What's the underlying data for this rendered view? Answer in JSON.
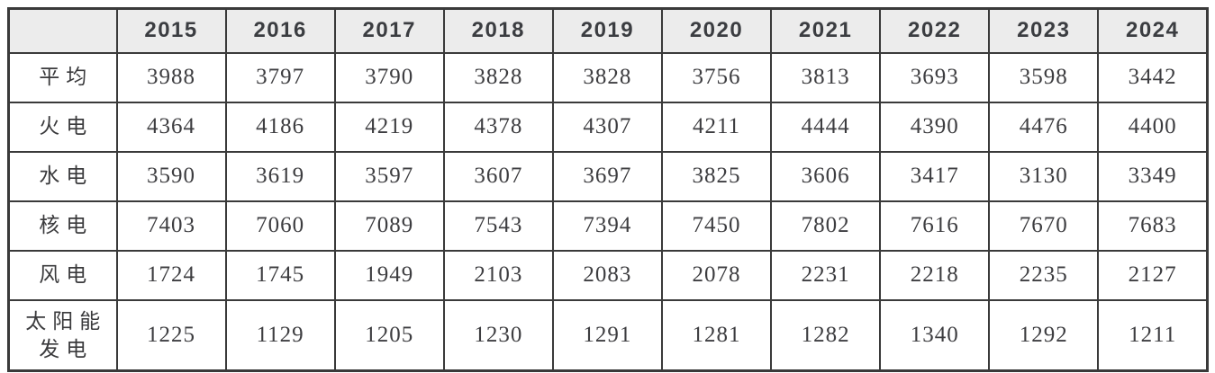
{
  "chart_data": {
    "type": "table",
    "title": "",
    "corner_label": "",
    "categories": [
      "2015",
      "2016",
      "2017",
      "2018",
      "2019",
      "2020",
      "2021",
      "2022",
      "2023",
      "2024"
    ],
    "series": [
      {
        "name": "平均",
        "values": [
          3988,
          3797,
          3790,
          3828,
          3828,
          3756,
          3813,
          3693,
          3598,
          3442
        ]
      },
      {
        "name": "火电",
        "values": [
          4364,
          4186,
          4219,
          4378,
          4307,
          4211,
          4444,
          4390,
          4476,
          4400
        ]
      },
      {
        "name": "水电",
        "values": [
          3590,
          3619,
          3597,
          3607,
          3697,
          3825,
          3606,
          3417,
          3130,
          3349
        ]
      },
      {
        "name": "核电",
        "values": [
          7403,
          7060,
          7089,
          7543,
          7394,
          7450,
          7802,
          7616,
          7670,
          7683
        ]
      },
      {
        "name": "风电",
        "values": [
          1724,
          1745,
          1949,
          2103,
          2083,
          2078,
          2231,
          2218,
          2235,
          2127
        ]
      },
      {
        "name": "太阳能发电",
        "values": [
          1225,
          1129,
          1205,
          1230,
          1291,
          1281,
          1282,
          1340,
          1292,
          1211
        ]
      }
    ],
    "layout_hints": {
      "grid": "all-borders",
      "header_position": "top",
      "row_labels_position": "left"
    }
  },
  "style": {
    "header_bg": "#ececec",
    "border_color": "#3a3a3a",
    "header_text_color": "#3b3d41",
    "body_text_color": "#3d3d40",
    "background": "#ffffff"
  }
}
